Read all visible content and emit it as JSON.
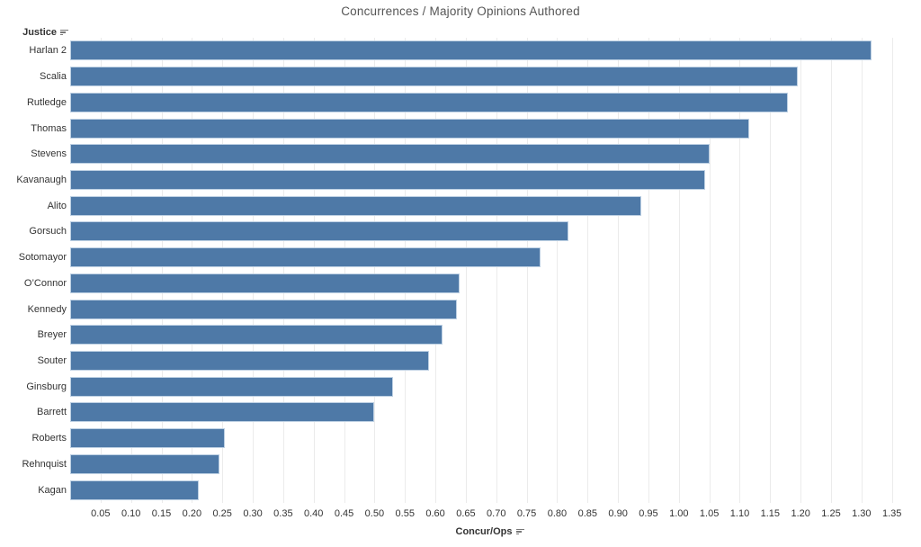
{
  "title": "Concurrences / Majority Opinions Authored",
  "row_header": {
    "label": "Justice",
    "icon": "sort-descending-icon"
  },
  "x_axis": {
    "label": "Concur/Ops",
    "icon": "sort-descending-icon"
  },
  "colors": {
    "bar": "#4e79a7",
    "bar_border": "#bdd0e3",
    "gridline": "#ebebeb",
    "title_text": "#555555",
    "label_text": "#333333",
    "background": "#ffffff"
  },
  "chart_data": {
    "type": "bar",
    "orientation": "horizontal",
    "title": "Concurrences / Majority Opinions Authored",
    "xlabel": "Concur/Ops",
    "ylabel": "Justice",
    "grid": true,
    "legend": false,
    "xlim": [
      0,
      1.38
    ],
    "xticks": [
      0.05,
      0.1,
      0.15,
      0.2,
      0.25,
      0.3,
      0.35,
      0.4,
      0.45,
      0.5,
      0.55,
      0.6,
      0.65,
      0.7,
      0.75,
      0.8,
      0.85,
      0.9,
      0.95,
      1.0,
      1.05,
      1.1,
      1.15,
      1.2,
      1.25,
      1.3,
      1.35
    ],
    "categories": [
      "Harlan 2",
      "Scalia",
      "Rutledge",
      "Thomas",
      "Stevens",
      "Kavanaugh",
      "Alito",
      "Gorsuch",
      "Sotomayor",
      "O’Connor",
      "Kennedy",
      "Breyer",
      "Souter",
      "Ginsburg",
      "Barrett",
      "Roberts",
      "Rehnquist",
      "Kagan"
    ],
    "values": [
      1.316,
      1.195,
      1.179,
      1.115,
      1.05,
      1.043,
      0.938,
      0.819,
      0.773,
      0.64,
      0.636,
      0.611,
      0.59,
      0.53,
      0.5,
      0.254,
      0.245,
      0.211
    ]
  }
}
